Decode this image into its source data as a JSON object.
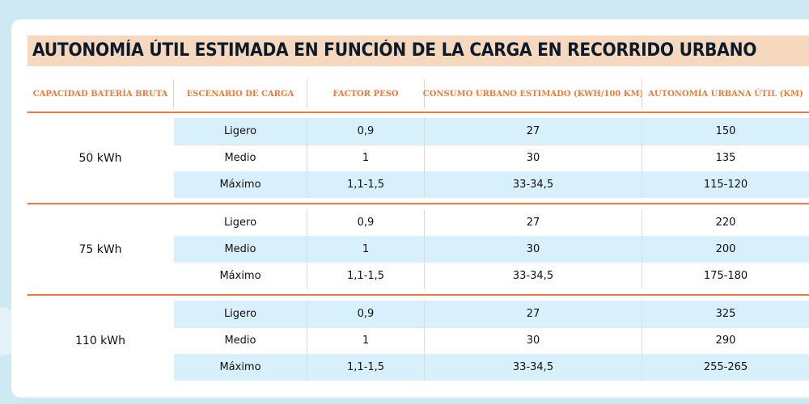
{
  "title": "AUTONOMÍA ÚTIL ESTIMADA EN FUNCIÓN DE LA CARGA EN RECORRIDO URBANO",
  "headers": [
    "CAPACIDAD BATERÍA BRUTA",
    "ESCENARIO DE CARGA",
    "FACTOR PESO",
    "CONSUMO URBANO ESTIMADO (KWH/100 KM)",
    "AUTONOMÍA URBANA ÚTIL (KM)"
  ],
  "groups": [
    {
      "capacity": "50 kWh",
      "rows": [
        {
          "scenario": "Ligero",
          "factor": "0,9",
          "consumo": "27",
          "autonomia": "150"
        },
        {
          "scenario": "Medio",
          "factor": "1",
          "consumo": "30",
          "autonomia": "135"
        },
        {
          "scenario": "Máximo",
          "factor": "1,1-1,5",
          "consumo": "33-34,5",
          "autonomia": "115-120"
        }
      ]
    },
    {
      "capacity": "75 kWh",
      "rows": [
        {
          "scenario": "Ligero",
          "factor": "0,9",
          "consumo": "27",
          "autonomia": "220"
        },
        {
          "scenario": "Medio",
          "factor": "1",
          "consumo": "30",
          "autonomia": "200"
        },
        {
          "scenario": "Máximo",
          "factor": "1,1-1,5",
          "consumo": "33-34,5",
          "autonomia": "175-180"
        }
      ]
    },
    {
      "capacity": "110 kWh",
      "rows": [
        {
          "scenario": "Ligero",
          "factor": "0,9",
          "consumo": "27",
          "autonomia": "325"
        },
        {
          "scenario": "Medio",
          "factor": "1",
          "consumo": "30",
          "autonomia": "290"
        },
        {
          "scenario": "Máximo",
          "factor": "1,1-1,5",
          "consumo": "33-34,5",
          "autonomia": "255-265"
        }
      ]
    }
  ],
  "colors": {
    "accent": "#ee7b3a",
    "title_bg": "#f6d8bf",
    "row_blue": "#d7f0fb",
    "page_bg": "#cfe9f2"
  }
}
